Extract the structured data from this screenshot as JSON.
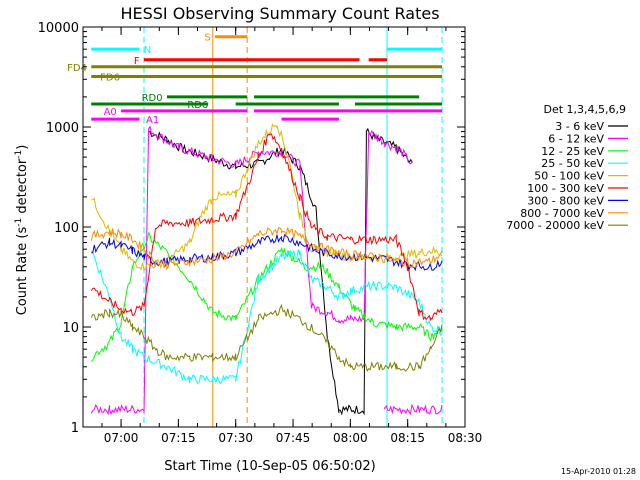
{
  "chart_data": {
    "type": "line",
    "title": "HESSI Observing Summary Count Rates",
    "xlabel": "Start Time (10-Sep-05 06:50:02)",
    "ylabel": "Count Rate (s⁻¹ detector⁻¹)",
    "ylabel_main": "Count Rate (s",
    "ylabel_sup1": "-1",
    "ylabel_mid": " detector",
    "ylabel_sup2": "-1",
    "ylabel_end": ")",
    "y_scale": "log",
    "ylim": [
      1,
      10000
    ],
    "xlim": [
      "06:50:02",
      "08:30"
    ],
    "x_ticks": [
      "07:00",
      "07:15",
      "07:30",
      "07:45",
      "08:00",
      "08:15",
      "08:30"
    ],
    "y_ticks": [
      "1",
      "10",
      "100",
      "1000",
      "10000"
    ],
    "legend_position": "right",
    "legend_title": "Det 1,3,4,5,6,9",
    "footer": "15-Apr-2010 01:28",
    "series": [
      {
        "name": "3 - 6 keV",
        "color": "#000000",
        "points": [
          [
            7.12,
            900
          ],
          [
            7.2,
            750
          ],
          [
            7.27,
            600
          ],
          [
            7.5,
            400
          ],
          [
            7.6,
            430
          ],
          [
            7.7,
            600
          ],
          [
            7.78,
            400
          ],
          [
            7.85,
            150
          ],
          [
            7.9,
            8
          ],
          [
            7.95,
            1.5
          ],
          [
            8.0,
            1.5
          ],
          [
            8.06,
            1.5
          ],
          [
            8.07,
            900
          ],
          [
            8.12,
            750
          ],
          [
            8.2,
            620
          ],
          [
            8.27,
            420
          ]
        ]
      },
      {
        "name": "6 - 12 keV",
        "color": "#ff00ff",
        "points": [
          [
            6.87,
            1.5
          ],
          [
            6.95,
            1.5
          ],
          [
            7.1,
            1.5
          ],
          [
            7.12,
            950
          ],
          [
            7.25,
            620
          ],
          [
            7.4,
            480
          ],
          [
            7.5,
            420
          ],
          [
            7.55,
            480
          ],
          [
            7.6,
            560
          ],
          [
            7.7,
            560
          ],
          [
            7.78,
            420
          ],
          [
            7.83,
            16
          ],
          [
            7.9,
            14
          ],
          [
            7.95,
            12
          ],
          [
            8.0,
            12
          ],
          [
            8.06,
            12
          ],
          [
            8.08,
            900
          ],
          [
            8.15,
            700
          ],
          [
            8.22,
            580
          ],
          [
            8.27,
            420
          ],
          [
            8.15,
            1.5
          ],
          [
            8.4,
            1.5
          ]
        ]
      },
      {
        "name": "12 - 25 keV",
        "color": "#00ff00",
        "points": [
          [
            6.87,
            5
          ],
          [
            6.95,
            7
          ],
          [
            7.0,
            11
          ],
          [
            7.05,
            40
          ],
          [
            7.12,
            80
          ],
          [
            7.2,
            55
          ],
          [
            7.3,
            30
          ],
          [
            7.4,
            14
          ],
          [
            7.5,
            12
          ],
          [
            7.6,
            30
          ],
          [
            7.7,
            60
          ],
          [
            7.75,
            50
          ],
          [
            7.8,
            40
          ],
          [
            7.88,
            40
          ],
          [
            7.95,
            25
          ],
          [
            8.02,
            15
          ],
          [
            8.1,
            11
          ],
          [
            8.2,
            10
          ],
          [
            8.3,
            10
          ],
          [
            8.35,
            8
          ],
          [
            8.4,
            10
          ]
        ]
      },
      {
        "name": "25 - 50 keV",
        "color": "#00ffff",
        "points": [
          [
            6.87,
            60
          ],
          [
            6.95,
            20
          ],
          [
            7.0,
            8
          ],
          [
            7.05,
            6
          ],
          [
            7.1,
            5
          ],
          [
            7.2,
            4
          ],
          [
            7.3,
            3
          ],
          [
            7.4,
            3
          ],
          [
            7.5,
            3
          ],
          [
            7.6,
            30
          ],
          [
            7.7,
            50
          ],
          [
            7.78,
            55
          ],
          [
            7.83,
            30
          ],
          [
            7.9,
            25
          ],
          [
            7.95,
            20
          ],
          [
            8.0,
            23
          ],
          [
            8.1,
            26
          ],
          [
            8.2,
            25
          ],
          [
            8.3,
            18
          ],
          [
            8.35,
            10
          ],
          [
            8.4,
            9
          ]
        ]
      },
      {
        "name": "50 - 100 keV",
        "color": "#ddbb00",
        "points": [
          [
            6.87,
            200
          ],
          [
            6.95,
            90
          ],
          [
            7.0,
            60
          ],
          [
            7.05,
            45
          ],
          [
            7.1,
            40
          ],
          [
            7.2,
            45
          ],
          [
            7.3,
            70
          ],
          [
            7.35,
            130
          ],
          [
            7.4,
            200
          ],
          [
            7.5,
            210
          ],
          [
            7.6,
            700
          ],
          [
            7.68,
            1100
          ],
          [
            7.73,
            500
          ],
          [
            7.78,
            130
          ],
          [
            7.83,
            60
          ],
          [
            7.9,
            55
          ],
          [
            8.0,
            50
          ],
          [
            8.1,
            50
          ],
          [
            8.2,
            50
          ],
          [
            8.3,
            55
          ],
          [
            8.35,
            58
          ],
          [
            8.4,
            55
          ]
        ]
      },
      {
        "name": "100 - 300 keV",
        "color": "#ff0000",
        "points": [
          [
            6.87,
            25
          ],
          [
            6.95,
            18
          ],
          [
            7.0,
            15
          ],
          [
            7.05,
            14
          ],
          [
            7.1,
            16
          ],
          [
            7.15,
            100
          ],
          [
            7.2,
            110
          ],
          [
            7.3,
            110
          ],
          [
            7.4,
            120
          ],
          [
            7.5,
            130
          ],
          [
            7.6,
            500
          ],
          [
            7.65,
            900
          ],
          [
            7.7,
            600
          ],
          [
            7.78,
            200
          ],
          [
            7.83,
            100
          ],
          [
            7.9,
            80
          ],
          [
            8.0,
            75
          ],
          [
            8.1,
            75
          ],
          [
            8.2,
            75
          ],
          [
            8.25,
            40
          ],
          [
            8.3,
            14
          ],
          [
            8.35,
            12
          ],
          [
            8.4,
            15
          ]
        ]
      },
      {
        "name": "300 - 800 keV",
        "color": "#0000ff",
        "points": [
          [
            6.87,
            60
          ],
          [
            6.95,
            70
          ],
          [
            7.0,
            65
          ],
          [
            7.05,
            58
          ],
          [
            7.1,
            50
          ],
          [
            7.15,
            45
          ],
          [
            7.2,
            45
          ],
          [
            7.3,
            48
          ],
          [
            7.4,
            50
          ],
          [
            7.5,
            55
          ],
          [
            7.6,
            70
          ],
          [
            7.7,
            80
          ],
          [
            7.78,
            70
          ],
          [
            7.85,
            58
          ],
          [
            7.95,
            52
          ],
          [
            8.05,
            50
          ],
          [
            8.15,
            48
          ],
          [
            8.25,
            42
          ],
          [
            8.35,
            40
          ],
          [
            8.4,
            45
          ]
        ]
      },
      {
        "name": "800 - 7000 keV",
        "color": "#ff8c00",
        "points": [
          [
            6.87,
            80
          ],
          [
            6.95,
            90
          ],
          [
            7.0,
            85
          ],
          [
            7.05,
            75
          ],
          [
            7.1,
            60
          ],
          [
            7.15,
            45
          ],
          [
            7.2,
            42
          ],
          [
            7.3,
            45
          ],
          [
            7.4,
            48
          ],
          [
            7.5,
            55
          ],
          [
            7.6,
            85
          ],
          [
            7.7,
            95
          ],
          [
            7.78,
            80
          ],
          [
            7.85,
            65
          ],
          [
            7.95,
            55
          ],
          [
            8.05,
            52
          ],
          [
            8.15,
            48
          ],
          [
            8.25,
            44
          ],
          [
            8.35,
            45
          ],
          [
            8.4,
            55
          ]
        ]
      },
      {
        "name": "7000 - 20000 keV",
        "color": "#808000",
        "points": [
          [
            6.87,
            12
          ],
          [
            6.95,
            14
          ],
          [
            7.0,
            13
          ],
          [
            7.05,
            10
          ],
          [
            7.1,
            8
          ],
          [
            7.15,
            6
          ],
          [
            7.2,
            5
          ],
          [
            7.3,
            5
          ],
          [
            7.4,
            5
          ],
          [
            7.5,
            5
          ],
          [
            7.6,
            12
          ],
          [
            7.7,
            15
          ],
          [
            7.78,
            12
          ],
          [
            7.85,
            9
          ],
          [
            7.9,
            7
          ],
          [
            7.95,
            5
          ],
          [
            8.0,
            4
          ],
          [
            8.1,
            4
          ],
          [
            8.2,
            4
          ],
          [
            8.3,
            4
          ],
          [
            8.35,
            6
          ],
          [
            8.4,
            10
          ]
        ]
      }
    ],
    "flags": [
      {
        "label": "N",
        "color": "#00ffff",
        "level": 6000,
        "segments": [
          [
            6.87,
            7.08
          ],
          [
            8.16,
            8.4
          ]
        ],
        "label_side": "right",
        "label_at": 7.09
      },
      {
        "label": "S",
        "color": "#ff8c00",
        "level": 8000,
        "segments": [
          [
            7.41,
            7.55
          ]
        ],
        "label_side": "left",
        "label_at": 7.4
      },
      {
        "label": "F",
        "color": "#ff0000",
        "level": 4700,
        "segments": [
          [
            7.1,
            7.55
          ],
          [
            7.55,
            8.04
          ],
          [
            8.08,
            8.16
          ]
        ],
        "label_side": "left",
        "label_at": 7.09
      },
      {
        "label": "FD4",
        "color": "#808000",
        "level": 4000,
        "segments": [
          [
            6.87,
            8.4
          ]
        ],
        "label_side": "left",
        "label_at": 6.86
      },
      {
        "label": "FD6",
        "color": "#808000",
        "level": 3200,
        "segments": [
          [
            6.87,
            8.4
          ]
        ],
        "label_side": "right",
        "label_at": 6.9
      },
      {
        "label": "RD0",
        "color": "#008000",
        "level": 2000,
        "segments": [
          [
            7.2,
            7.55
          ],
          [
            7.58,
            8.3
          ]
        ],
        "label_side": "left",
        "label_at": 7.19
      },
      {
        "label": "RD6",
        "color": "#008000",
        "level": 1700,
        "segments": [
          [
            6.87,
            7.38
          ],
          [
            7.5,
            7.95
          ],
          [
            8.02,
            8.4
          ]
        ],
        "label_side": "right",
        "label_at": 7.28
      },
      {
        "label": "A0",
        "color": "#ff00ff",
        "level": 1450,
        "segments": [
          [
            7.0,
            7.55
          ],
          [
            7.58,
            8.4
          ]
        ],
        "label_side": "left",
        "label_at": 6.99
      },
      {
        "label": "A1",
        "color": "#ff00ff",
        "level": 1200,
        "segments": [
          [
            6.87,
            7.08
          ],
          [
            7.7,
            7.95
          ]
        ],
        "label_side": "right",
        "label_at": 7.1
      }
    ],
    "vlines": [
      {
        "x": 7.1,
        "color": "#00ffff",
        "dashed": true
      },
      {
        "x": 7.4,
        "color": "#ff8c00",
        "dashed": false
      },
      {
        "x": 7.55,
        "color": "#ff8c00",
        "dashed": true
      },
      {
        "x": 8.16,
        "color": "#00ffff",
        "dashed": false
      },
      {
        "x": 8.4,
        "color": "#00ffff",
        "dashed": true
      }
    ]
  }
}
